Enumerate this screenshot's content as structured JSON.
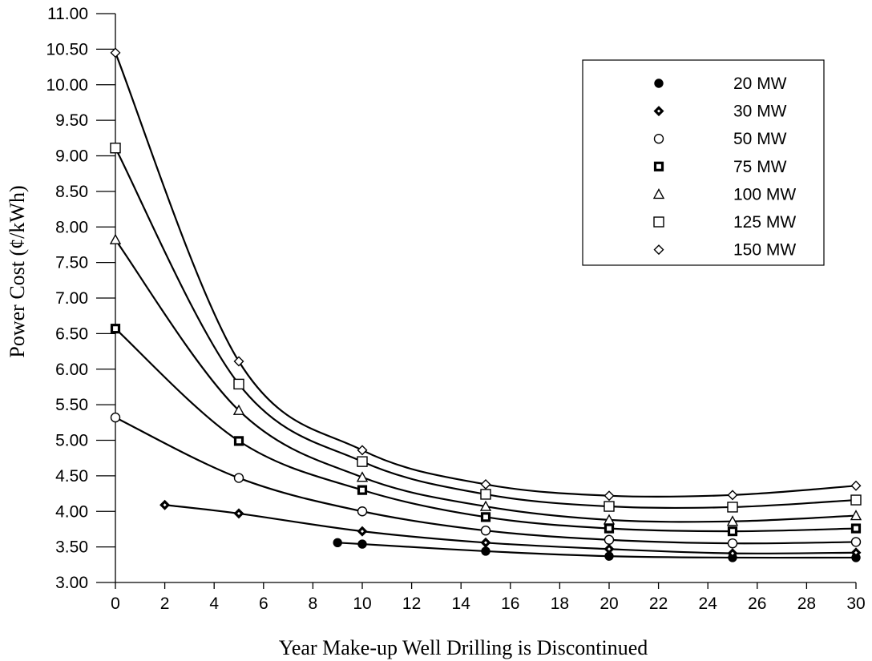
{
  "chart_data": {
    "type": "line",
    "title": "",
    "xlabel": "Year Make-up Well Drilling is Discontinued",
    "ylabel": "Power Cost (¢/kWh)",
    "xlim": [
      0,
      30
    ],
    "ylim": [
      3.0,
      11.0
    ],
    "x_ticks": [
      "0",
      "2",
      "4",
      "6",
      "8",
      "10",
      "12",
      "14",
      "16",
      "18",
      "20",
      "22",
      "24",
      "26",
      "28",
      "30"
    ],
    "y_ticks": [
      "3.00",
      "3.50",
      "4.00",
      "4.50",
      "5.00",
      "5.50",
      "6.00",
      "6.50",
      "7.00",
      "7.50",
      "8.00",
      "8.50",
      "9.00",
      "9.50",
      "10.00",
      "10.50",
      "11.00"
    ],
    "grid": false,
    "legend_position": "top-right",
    "series": [
      {
        "name": "20 MW",
        "marker": "filled-circle",
        "x": [
          9,
          10,
          15,
          20,
          25,
          30
        ],
        "y": [
          3.56,
          3.54,
          3.44,
          3.37,
          3.35,
          3.35
        ]
      },
      {
        "name": "30 MW",
        "marker": "filled-diamond",
        "x": [
          2,
          5,
          10,
          15,
          20,
          25,
          30
        ],
        "y": [
          4.09,
          3.97,
          3.72,
          3.56,
          3.47,
          3.41,
          3.42
        ]
      },
      {
        "name": "50 MW",
        "marker": "open-circle",
        "x": [
          0,
          5,
          10,
          15,
          20,
          25,
          30
        ],
        "y": [
          5.32,
          4.47,
          4.0,
          3.73,
          3.6,
          3.55,
          3.57
        ]
      },
      {
        "name": "75 MW",
        "marker": "bold-square",
        "x": [
          0,
          5,
          10,
          15,
          20,
          25,
          30
        ],
        "y": [
          6.57,
          4.99,
          4.3,
          3.92,
          3.76,
          3.72,
          3.76
        ]
      },
      {
        "name": "100 MW",
        "marker": "open-triangle",
        "x": [
          0,
          5,
          10,
          15,
          20,
          25,
          30
        ],
        "y": [
          7.82,
          5.42,
          4.48,
          4.07,
          3.88,
          3.86,
          3.94
        ]
      },
      {
        "name": "125 MW",
        "marker": "open-square",
        "x": [
          0,
          5,
          10,
          15,
          20,
          25,
          30
        ],
        "y": [
          9.11,
          5.79,
          4.7,
          4.24,
          4.07,
          4.06,
          4.16
        ]
      },
      {
        "name": "150 MW",
        "marker": "open-diamond",
        "x": [
          0,
          5,
          10,
          15,
          20,
          25,
          30
        ],
        "y": [
          10.45,
          6.11,
          4.86,
          4.38,
          4.22,
          4.23,
          4.36
        ]
      }
    ]
  }
}
